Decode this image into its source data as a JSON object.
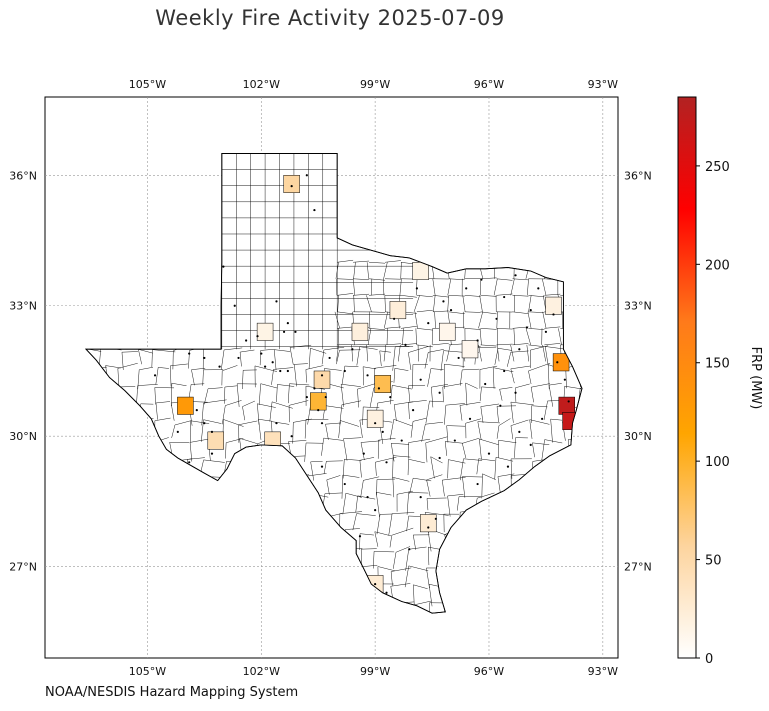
{
  "title": "Weekly Fire Activity 2025-07-09",
  "source": "NOAA/NESDIS Hazard Mapping System",
  "map": {
    "region": "Texas",
    "lon_range": [
      -107.7,
      -92.6
    ],
    "lat_range": [
      24.9,
      37.8
    ],
    "lon_ticks": [
      {
        "value": -105,
        "label": "105°W"
      },
      {
        "value": -102,
        "label": "102°W"
      },
      {
        "value": -99,
        "label": "99°W"
      },
      {
        "value": -96,
        "label": "96°W"
      },
      {
        "value": -93,
        "label": "93°W"
      }
    ],
    "lat_ticks": [
      {
        "value": 36,
        "label": "36°N"
      },
      {
        "value": 33,
        "label": "33°N"
      },
      {
        "value": 30,
        "label": "30°N"
      },
      {
        "value": 27,
        "label": "27°N"
      }
    ],
    "gridlines": true
  },
  "colorbar": {
    "label": "FRP (MW)",
    "min": 0,
    "max": 285,
    "ticks": [
      {
        "value": 0,
        "label": "0"
      },
      {
        "value": 50,
        "label": "50"
      },
      {
        "value": 100,
        "label": "100"
      },
      {
        "value": 150,
        "label": "150"
      },
      {
        "value": 200,
        "label": "200"
      },
      {
        "value": 250,
        "label": "250"
      }
    ],
    "colors": [
      "#ffffff",
      "#fdd49e",
      "#ffa500",
      "#ff7a1a",
      "#ff0000",
      "#b22222"
    ]
  },
  "highlighted_counties": [
    {
      "lon": -101.2,
      "lat": 35.8,
      "frp": 55
    },
    {
      "lon": -104.0,
      "lat": 30.7,
      "frp": 130
    },
    {
      "lon": -103.2,
      "lat": 29.9,
      "frp": 45
    },
    {
      "lon": -101.7,
      "lat": 29.9,
      "frp": 40
    },
    {
      "lon": -100.5,
      "lat": 30.8,
      "frp": 95
    },
    {
      "lon": -100.4,
      "lat": 31.3,
      "frp": 50
    },
    {
      "lon": -98.8,
      "lat": 31.2,
      "frp": 85
    },
    {
      "lon": -94.1,
      "lat": 31.7,
      "frp": 140
    },
    {
      "lon": -93.95,
      "lat": 30.7,
      "frp": 275
    },
    {
      "lon": -93.85,
      "lat": 30.35,
      "frp": 270
    },
    {
      "lon": -99.0,
      "lat": 26.6,
      "frp": 25
    },
    {
      "lon": -99.4,
      "lat": 32.4,
      "frp": 20
    },
    {
      "lon": -98.4,
      "lat": 32.9,
      "frp": 22
    },
    {
      "lon": -94.3,
      "lat": 33.0,
      "frp": 18
    },
    {
      "lon": -97.8,
      "lat": 33.8,
      "frp": 15
    },
    {
      "lon": -97.1,
      "lat": 32.4,
      "frp": 12
    },
    {
      "lon": -96.5,
      "lat": 32.0,
      "frp": 10
    },
    {
      "lon": -101.9,
      "lat": 32.4,
      "frp": 15
    },
    {
      "lon": -99.0,
      "lat": 30.4,
      "frp": 18
    },
    {
      "lon": -97.6,
      "lat": 28.0,
      "frp": 25
    }
  ],
  "fire_detections": [
    [
      -101.2,
      35.75
    ],
    [
      -100.8,
      36.0
    ],
    [
      -100.6,
      35.2
    ],
    [
      -103.0,
      33.9
    ],
    [
      -101.6,
      33.1
    ],
    [
      -102.7,
      33.0
    ],
    [
      -101.3,
      32.6
    ],
    [
      -101.4,
      32.4
    ],
    [
      -101.1,
      32.4
    ],
    [
      -102.1,
      32.3
    ],
    [
      -102.4,
      32.2
    ],
    [
      -102.0,
      31.9
    ],
    [
      -101.7,
      31.7
    ],
    [
      -101.9,
      31.6
    ],
    [
      -101.5,
      31.5
    ],
    [
      -101.3,
      31.5
    ],
    [
      -100.2,
      31.8
    ],
    [
      -100.4,
      31.4
    ],
    [
      -100.6,
      31.1
    ],
    [
      -100.8,
      30.9
    ],
    [
      -100.3,
      30.9
    ],
    [
      -100.5,
      30.6
    ],
    [
      -100.4,
      30.3
    ],
    [
      -103.9,
      31.9
    ],
    [
      -103.5,
      31.8
    ],
    [
      -103.1,
      31.6
    ],
    [
      -102.6,
      31.8
    ],
    [
      -103.7,
      30.6
    ],
    [
      -103.5,
      30.3
    ],
    [
      -103.3,
      30.1
    ],
    [
      -104.2,
      30.1
    ],
    [
      -103.3,
      29.6
    ],
    [
      -101.6,
      30.3
    ],
    [
      -101.2,
      30.0
    ],
    [
      -99.6,
      32.0
    ],
    [
      -99.8,
      31.5
    ],
    [
      -99.2,
      31.4
    ],
    [
      -98.9,
      31.1
    ],
    [
      -98.6,
      30.9
    ],
    [
      -99.0,
      30.3
    ],
    [
      -98.8,
      30.1
    ],
    [
      -99.3,
      29.6
    ],
    [
      -99.2,
      28.6
    ],
    [
      -99.0,
      28.3
    ],
    [
      -99.4,
      27.7
    ],
    [
      -99.0,
      26.6
    ],
    [
      -98.7,
      26.4
    ],
    [
      -98.1,
      27.4
    ],
    [
      -97.6,
      27.9
    ],
    [
      -97.4,
      28.1
    ],
    [
      -97.8,
      28.6
    ],
    [
      -97.3,
      29.5
    ],
    [
      -96.9,
      29.9
    ],
    [
      -96.5,
      30.4
    ],
    [
      -96.1,
      31.2
    ],
    [
      -95.6,
      31.5
    ],
    [
      -95.2,
      32.0
    ],
    [
      -95.0,
      32.5
    ],
    [
      -94.9,
      32.9
    ],
    [
      -95.6,
      33.2
    ],
    [
      -96.6,
      33.4
    ],
    [
      -97.2,
      33.1
    ],
    [
      -97.6,
      32.6
    ],
    [
      -98.2,
      32.1
    ],
    [
      -98.5,
      32.7
    ],
    [
      -97.9,
      33.4
    ],
    [
      -96.2,
      33.6
    ],
    [
      -95.3,
      33.7
    ],
    [
      -94.7,
      33.4
    ],
    [
      -94.3,
      32.8
    ],
    [
      -94.5,
      32.4
    ],
    [
      -94.2,
      31.7
    ],
    [
      -94.0,
      31.3
    ],
    [
      -93.9,
      30.8
    ],
    [
      -94.6,
      30.4
    ],
    [
      -95.2,
      30.1
    ],
    [
      -95.7,
      30.7
    ],
    [
      -96.0,
      29.6
    ],
    [
      -96.3,
      28.9
    ],
    [
      -95.5,
      29.3
    ],
    [
      -94.9,
      29.8
    ],
    [
      -97.8,
      31.3
    ],
    [
      -97.3,
      31.0
    ],
    [
      -98.0,
      30.6
    ],
    [
      -98.3,
      29.9
    ],
    [
      -98.7,
      29.4
    ],
    [
      -99.8,
      28.9
    ],
    [
      -100.4,
      29.3
    ],
    [
      -104.8,
      31.4
    ],
    [
      -103.9,
      29.4
    ],
    [
      -97.0,
      32.9
    ],
    [
      -96.3,
      32.2
    ],
    [
      -95.8,
      32.7
    ],
    [
      -96.8,
      31.8
    ],
    [
      -95.3,
      31.0
    ]
  ]
}
